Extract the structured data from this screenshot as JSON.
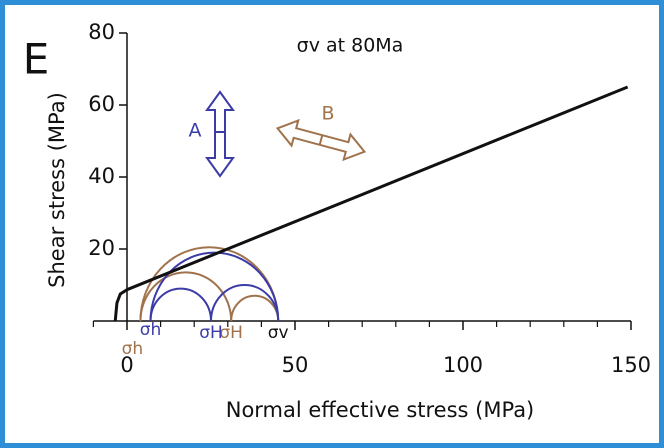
{
  "chart_data": {
    "type": "mohr",
    "panel_label": "E",
    "title": "σv at 80Ma",
    "x_label": "Normal effective stress (MPa)",
    "y_label": "Shear stress (MPa)",
    "xlim": [
      -10,
      150
    ],
    "ylim": [
      0,
      80
    ],
    "xticks": [
      0,
      50,
      100,
      150
    ],
    "xminorticks": [
      -10,
      10,
      20,
      30,
      40,
      60,
      70,
      80,
      90,
      110,
      120,
      130,
      140
    ],
    "yticks": [
      20,
      40,
      60,
      80
    ],
    "envelope": {
      "color": "#111111",
      "x": [
        -3.5,
        -3,
        -2,
        0,
        149
      ],
      "y": [
        0,
        5,
        7.5,
        8.7,
        65
      ]
    },
    "stress_states": [
      {
        "color": "#a0734c",
        "sigma_h": 4,
        "sigma_H": 31,
        "sigma_v": 45,
        "sigma_h_label": "σh",
        "sigma_H_label": "σH"
      },
      {
        "color": "#3c3ca8",
        "sigma_h": 7,
        "sigma_H": 25,
        "sigma_v": 45,
        "sigma_h_label": "σh",
        "sigma_H_label": "σH"
      }
    ],
    "sigma_v_label": "σv",
    "annotations": {
      "A": "A",
      "B": "B"
    }
  }
}
